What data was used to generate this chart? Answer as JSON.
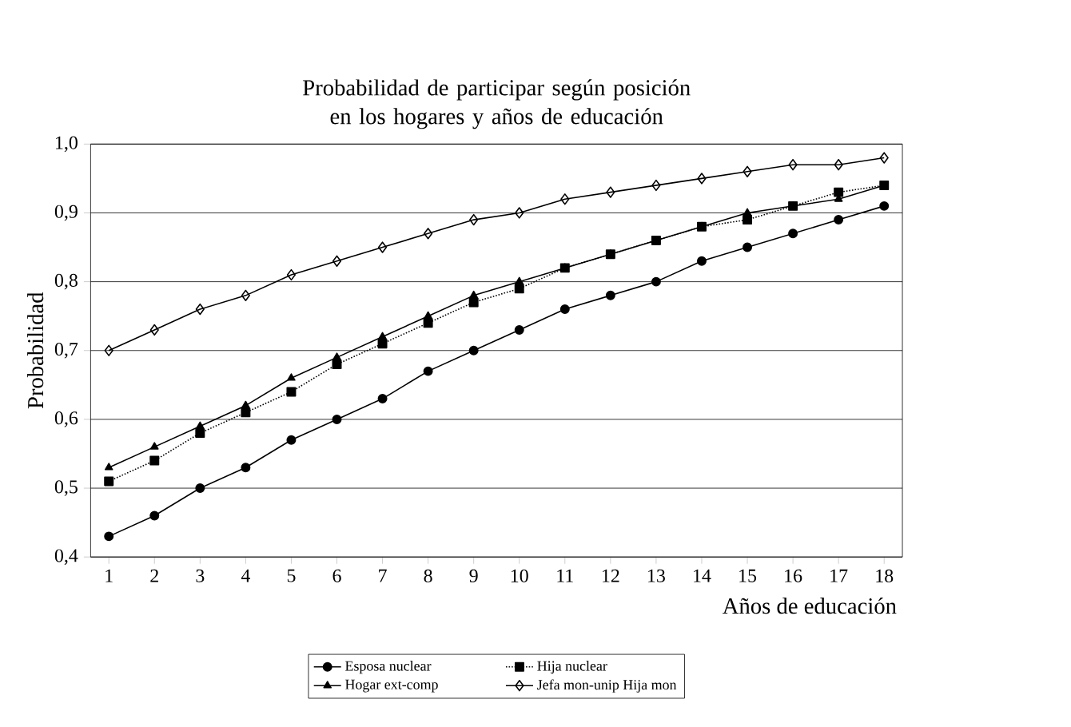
{
  "chart_data": {
    "type": "line",
    "title": "Probabilidad de participar según posición en los hogares y años de educación",
    "xlabel": "Años de educación",
    "ylabel": "Probabilidad",
    "categories": [
      "1",
      "2",
      "3",
      "4",
      "5",
      "6",
      "7",
      "8",
      "9",
      "10",
      "11",
      "12",
      "13",
      "14",
      "15",
      "16",
      "17",
      "18"
    ],
    "ylim": [
      0.4,
      1.0
    ],
    "yticks": [
      {
        "value": 0.4,
        "label": "0,4"
      },
      {
        "value": 0.5,
        "label": "0,5"
      },
      {
        "value": 0.6,
        "label": "0,6"
      },
      {
        "value": 0.7,
        "label": "0,7"
      },
      {
        "value": 0.8,
        "label": "0,8"
      },
      {
        "value": 0.9,
        "label": "0,9"
      },
      {
        "value": 1.0,
        "label": "1,0"
      }
    ],
    "grid": "y",
    "legend": "bottom",
    "series": [
      {
        "name": "Esposa nuclear",
        "color": "#000000",
        "marker": "circle",
        "line_style": "solid",
        "values": [
          0.43,
          0.46,
          0.5,
          0.53,
          0.57,
          0.6,
          0.63,
          0.67,
          0.7,
          0.73,
          0.76,
          0.78,
          0.8,
          0.83,
          0.85,
          0.87,
          0.89,
          0.91
        ]
      },
      {
        "name": "Hija nuclear",
        "color": "#000000",
        "marker": "square",
        "line_style": "dotted",
        "values": [
          0.51,
          0.54,
          0.58,
          0.61,
          0.64,
          0.68,
          0.71,
          0.74,
          0.77,
          0.79,
          0.82,
          0.84,
          0.86,
          0.88,
          0.89,
          0.91,
          0.93,
          0.94
        ]
      },
      {
        "name": "Hogar ext-comp",
        "color": "#000000",
        "marker": "triangle",
        "line_style": "solid",
        "values": [
          0.53,
          0.56,
          0.59,
          0.62,
          0.66,
          0.69,
          0.72,
          0.75,
          0.78,
          0.8,
          0.82,
          0.84,
          0.86,
          0.88,
          0.9,
          0.91,
          0.92,
          0.94
        ]
      },
      {
        "name": "Jefa mon-unip Hija mon",
        "color": "#000000",
        "marker": "diamond",
        "line_style": "solid",
        "values": [
          0.7,
          0.73,
          0.76,
          0.78,
          0.81,
          0.83,
          0.85,
          0.87,
          0.89,
          0.9,
          0.92,
          0.93,
          0.94,
          0.95,
          0.96,
          0.97,
          0.97,
          0.98
        ]
      }
    ]
  }
}
